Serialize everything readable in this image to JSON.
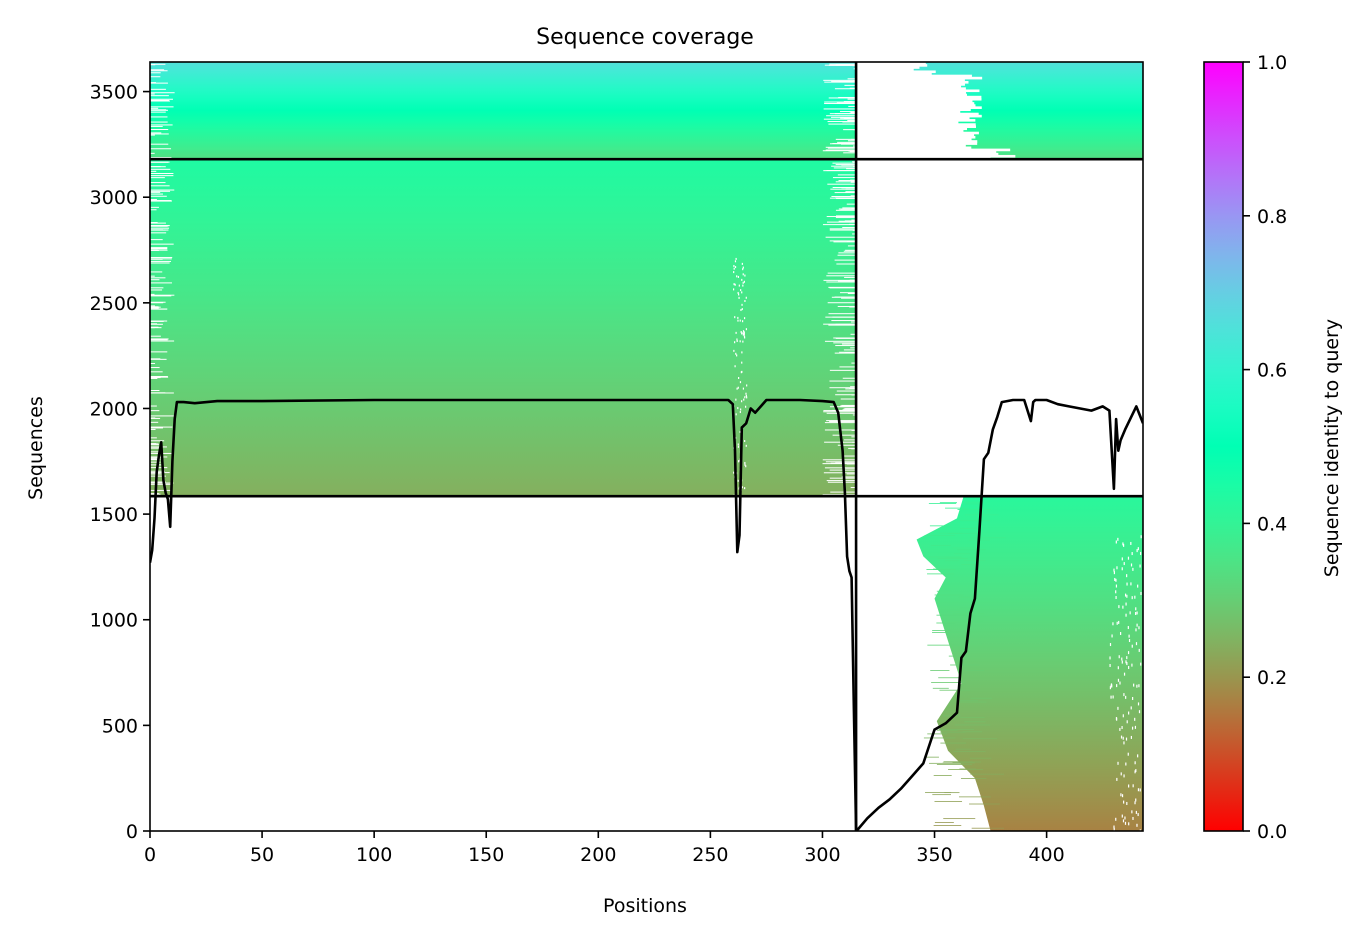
{
  "chart_data": {
    "type": "heatmap",
    "title": "Sequence coverage",
    "xlabel": "Positions",
    "ylabel": "Sequences",
    "xlim": [
      0,
      443
    ],
    "ylim": [
      0,
      3640
    ],
    "x_ticks": [
      0,
      50,
      100,
      150,
      200,
      250,
      300,
      350,
      400
    ],
    "y_ticks": [
      0,
      500,
      1000,
      1500,
      2000,
      2500,
      3000,
      3500
    ],
    "colorbar": {
      "label": "Sequence identity to query",
      "colormap": "rainbow_r",
      "range": [
        0.0,
        1.0
      ],
      "ticks": [
        0.0,
        0.2,
        0.4,
        0.6,
        0.8,
        1.0
      ],
      "tick_labels": [
        "0.0",
        "0.2",
        "0.4",
        "0.6",
        "0.8",
        "1.0"
      ]
    },
    "boundaries": {
      "vertical_x": 315,
      "horizontal_y": [
        1585,
        3180
      ]
    },
    "blocks": [
      {
        "name": "top-left",
        "x": [
          0,
          315
        ],
        "y": [
          3180,
          3640
        ],
        "identity_bottom": 0.34,
        "identity_top": 0.66
      },
      {
        "name": "top-right",
        "x": [
          315,
          443
        ],
        "y": [
          3180,
          3640
        ],
        "identity_bottom": 0.34,
        "identity_top": 0.66,
        "sparse": true
      },
      {
        "name": "middle-left",
        "x": [
          0,
          315
        ],
        "y": [
          1585,
          3180
        ],
        "identity_bottom": 0.24,
        "identity_top": 0.44
      },
      {
        "name": "middle-right",
        "x": [
          315,
          443
        ],
        "y": [
          1585,
          3180
        ],
        "empty": true
      },
      {
        "name": "bottom-left",
        "x": [
          0,
          315
        ],
        "y": [
          0,
          1585
        ],
        "empty": true
      },
      {
        "name": "bottom-right",
        "x": [
          375,
          443
        ],
        "y": [
          0,
          1585
        ],
        "identity_bottom": 0.17,
        "identity_top": 0.42,
        "staggered_start": true
      }
    ],
    "coverage_line": {
      "x": [
        0,
        1,
        2,
        3,
        4,
        5,
        6,
        7,
        8,
        9,
        10,
        11,
        12,
        15,
        20,
        30,
        50,
        100,
        150,
        200,
        250,
        258,
        260,
        261,
        262,
        263,
        264,
        265,
        266,
        268,
        270,
        275,
        280,
        290,
        300,
        305,
        307,
        309,
        310,
        311,
        312,
        313,
        314,
        315,
        316,
        320,
        325,
        330,
        335,
        340,
        345,
        350,
        355,
        360,
        362,
        364,
        366,
        368,
        370,
        372,
        374,
        376,
        378,
        380,
        385,
        390,
        393,
        394,
        395,
        400,
        405,
        410,
        415,
        420,
        425,
        428,
        430,
        431,
        432,
        433,
        435,
        440,
        443
      ],
      "y": [
        1270,
        1330,
        1480,
        1700,
        1780,
        1840,
        1660,
        1600,
        1570,
        1440,
        1750,
        1950,
        2030,
        2030,
        2025,
        2035,
        2035,
        2040,
        2040,
        2040,
        2040,
        2040,
        2020,
        1800,
        1320,
        1400,
        1910,
        1920,
        1930,
        2000,
        1980,
        2040,
        2040,
        2040,
        2035,
        2030,
        1980,
        1800,
        1600,
        1300,
        1230,
        1200,
        600,
        0,
        10,
        60,
        110,
        150,
        200,
        260,
        320,
        480,
        510,
        560,
        820,
        850,
        1030,
        1100,
        1420,
        1760,
        1790,
        1900,
        1960,
        2030,
        2040,
        2040,
        1940,
        2030,
        2040,
        2040,
        2020,
        2010,
        2000,
        1990,
        2010,
        1990,
        1620,
        1950,
        1800,
        1850,
        1900,
        2010,
        1930
      ]
    }
  }
}
